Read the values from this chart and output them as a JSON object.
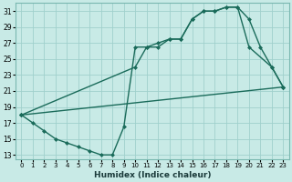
{
  "xlabel": "Humidex (Indice chaleur)",
  "xlim": [
    -0.5,
    23.5
  ],
  "ylim": [
    12.5,
    32
  ],
  "xticks": [
    0,
    1,
    2,
    3,
    4,
    5,
    6,
    7,
    8,
    9,
    10,
    11,
    12,
    13,
    14,
    15,
    16,
    17,
    18,
    19,
    20,
    21,
    22,
    23
  ],
  "yticks": [
    13,
    15,
    17,
    19,
    21,
    23,
    25,
    27,
    29,
    31
  ],
  "bg_color": "#c8eae6",
  "grid_color": "#a0d0cc",
  "line_color": "#1a6b5a",
  "line1_x": [
    0,
    1,
    2,
    3,
    4,
    5,
    6,
    7,
    8,
    9,
    10,
    11,
    12,
    13,
    14,
    15,
    16,
    17,
    18,
    19,
    20,
    22,
    23
  ],
  "line1_y": [
    18.0,
    17.0,
    16.0,
    15.0,
    14.5,
    14.0,
    13.5,
    13.0,
    13.0,
    16.5,
    26.5,
    26.5,
    27.0,
    27.5,
    27.5,
    30.0,
    31.0,
    31.0,
    31.5,
    31.5,
    26.5,
    24.0,
    21.5
  ],
  "line2_x": [
    0,
    10,
    11,
    12,
    13,
    14,
    15,
    16,
    17,
    18,
    19,
    20,
    21,
    22,
    23
  ],
  "line2_y": [
    18.0,
    24.0,
    26.5,
    26.5,
    27.5,
    27.5,
    30.0,
    31.0,
    31.0,
    31.5,
    31.5,
    30.0,
    26.5,
    24.0,
    21.5
  ],
  "line3_x": [
    0,
    23
  ],
  "line3_y": [
    18.0,
    21.5
  ],
  "markersize": 2.5,
  "linewidth": 1.0
}
